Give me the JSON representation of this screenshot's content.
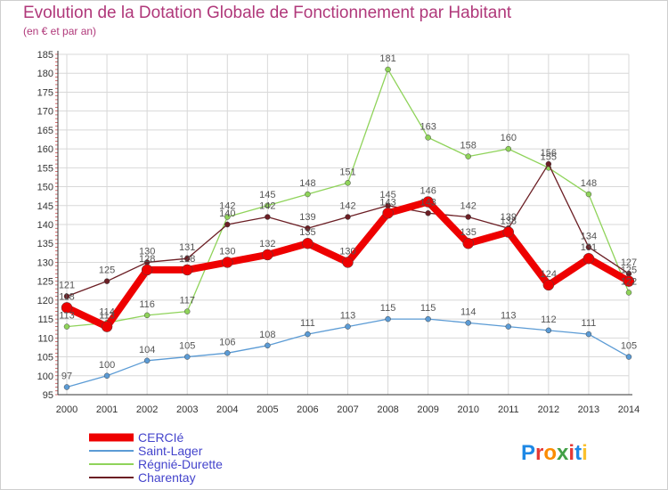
{
  "title": "Evolution de la Dotation Globale de Fonctionnement par Habitant",
  "subtitle": "(en € et par an)",
  "logo": "Proxiti",
  "colors": {
    "title": "#b0387a",
    "grid": "#d8d8d8",
    "axis": "#333333"
  },
  "chart_data": {
    "type": "line",
    "title": "Evolution de la Dotation Globale de Fonctionnement par Habitant",
    "ylabel": "(en € et par an)",
    "ylim": [
      95,
      185
    ],
    "yticks": [
      95,
      100,
      105,
      110,
      115,
      120,
      125,
      130,
      135,
      140,
      145,
      150,
      155,
      160,
      165,
      170,
      175,
      180,
      185
    ],
    "x": [
      "2000",
      "2001",
      "2002",
      "2003",
      "2004",
      "2005",
      "2006",
      "2007",
      "2008",
      "2009",
      "2010",
      "2011",
      "2012",
      "2013",
      "2014"
    ],
    "legend_position": "bottom-left",
    "series": [
      {
        "name": "Saint-Lager",
        "color": "#5b9bd5",
        "width": 1.3,
        "marker": 3,
        "values": [
          97,
          100,
          104,
          105,
          106,
          108,
          111,
          113,
          115,
          115,
          114,
          113,
          112,
          111,
          105
        ]
      },
      {
        "name": "Régnié-Durette",
        "color": "#8fd35a",
        "width": 1.3,
        "marker": 3,
        "values": [
          113,
          114,
          116,
          117,
          142,
          145,
          148,
          151,
          181,
          163,
          158,
          160,
          155,
          148,
          122
        ]
      },
      {
        "name": "Charentay",
        "color": "#6b1e24",
        "width": 1.3,
        "marker": 3,
        "values": [
          121,
          125,
          130,
          131,
          140,
          142,
          139,
          142,
          145,
          143,
          142,
          139,
          156,
          134,
          127
        ]
      },
      {
        "name": "CERCIé",
        "color": "#ee0000",
        "width": 8,
        "marker": 6,
        "values": [
          118,
          113,
          128,
          128,
          130,
          132,
          135,
          130,
          143,
          146,
          135,
          138,
          124,
          131,
          125
        ]
      }
    ],
    "legend_order": [
      "CERCIé",
      "Saint-Lager",
      "Régnié-Durette",
      "Charentay"
    ]
  }
}
